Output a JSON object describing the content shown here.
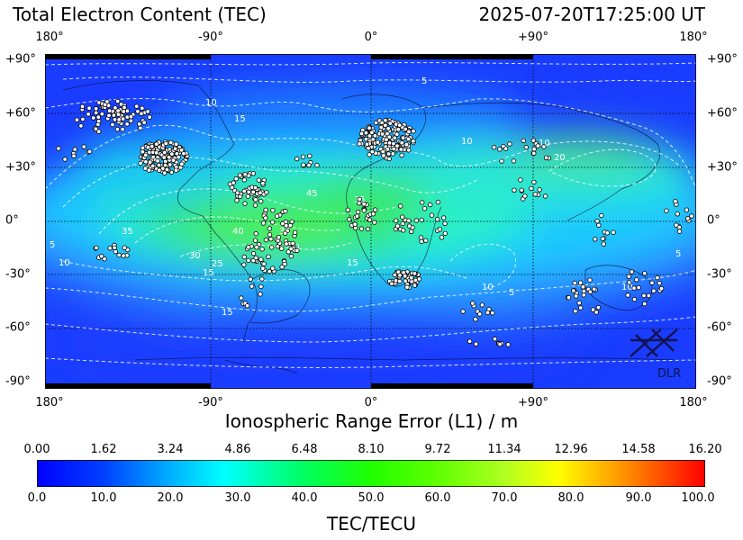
{
  "header": {
    "title": "Total Electron Content (TEC)",
    "timestamp": "2025-07-20T17:25:00 UT"
  },
  "map": {
    "longitude_ticks": [
      "180°",
      "-90°",
      "0°",
      "+90°",
      "180°"
    ],
    "latitude_ticks": [
      "+90°",
      "+60°",
      "+30°",
      "0°",
      "-30°",
      "-60°",
      "-90°"
    ],
    "contour_levels": [
      "5",
      "10",
      "15",
      "20",
      "25",
      "30",
      "35",
      "40",
      "45"
    ],
    "logo_text": "DLR",
    "colors": {
      "background_blue": "#1e4bff",
      "high_tec_green": "#1fe63a",
      "station_marker": "#ffffff",
      "contour_line": "#e8f4ff"
    }
  },
  "ionospheric_error": {
    "label": "Ionospheric Range Error (L1) / m",
    "ticks": [
      "0.00",
      "1.62",
      "3.24",
      "4.86",
      "6.48",
      "8.10",
      "9.72",
      "11.34",
      "12.96",
      "14.58",
      "16.20"
    ]
  },
  "colorbar": {
    "label": "TEC/TECU",
    "ticks": [
      "0.0",
      "10.0",
      "20.0",
      "30.0",
      "40.0",
      "50.0",
      "60.0",
      "70.0",
      "80.0",
      "90.0",
      "100.0"
    ],
    "min": 0,
    "max": 100,
    "colormap": "jet"
  }
}
